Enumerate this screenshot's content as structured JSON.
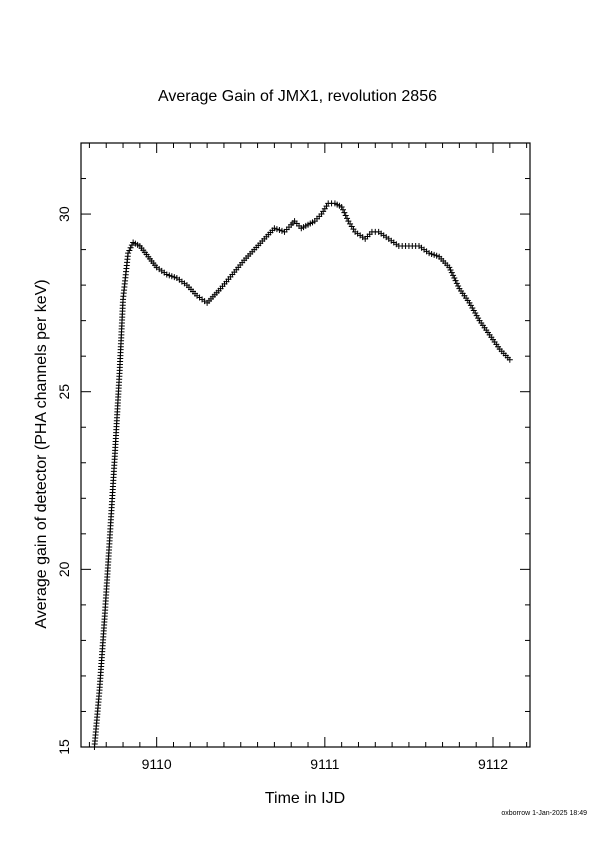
{
  "chart_data": {
    "type": "scatter",
    "title": "Average Gain of JMX1, revolution 2856",
    "xlabel": "Time in IJD",
    "ylabel": "Average gain of detector (PHA channels per keV)",
    "xlim": [
      9109.55,
      9112.22
    ],
    "ylim": [
      15,
      32
    ],
    "xticks": [
      9110,
      9111,
      9112
    ],
    "xtick_labels": [
      "9110",
      "9111",
      "9112"
    ],
    "yticks": [
      15,
      20,
      25,
      30
    ],
    "ytick_labels": [
      "15",
      "20",
      "25",
      "30"
    ],
    "marker": "+",
    "color": "#000000",
    "grid": false,
    "x": [
      9109.63,
      9109.66,
      9109.69,
      9109.72,
      9109.75,
      9109.78,
      9109.8,
      9109.83,
      9109.86,
      9109.9,
      9109.95,
      9110.0,
      9110.06,
      9110.12,
      9110.18,
      9110.24,
      9110.3,
      9110.38,
      9110.45,
      9110.52,
      9110.58,
      9110.64,
      9110.7,
      9110.76,
      9110.8,
      9110.82,
      9110.86,
      9110.9,
      9110.94,
      9110.98,
      9111.02,
      9111.06,
      9111.1,
      9111.14,
      9111.18,
      9111.24,
      9111.28,
      9111.32,
      9111.38,
      9111.44,
      9111.5,
      9111.56,
      9111.62,
      9111.68,
      9111.74,
      9111.8,
      9111.86,
      9111.92,
      9111.98,
      9112.04,
      9112.1
    ],
    "y": [
      15.0,
      16.6,
      18.6,
      20.8,
      23.1,
      25.6,
      27.6,
      28.9,
      29.2,
      29.1,
      28.8,
      28.5,
      28.3,
      28.2,
      28.0,
      27.7,
      27.5,
      27.9,
      28.3,
      28.7,
      29.0,
      29.3,
      29.6,
      29.5,
      29.7,
      29.8,
      29.6,
      29.7,
      29.8,
      30.0,
      30.3,
      30.3,
      30.2,
      29.8,
      29.5,
      29.3,
      29.5,
      29.5,
      29.3,
      29.1,
      29.1,
      29.1,
      28.9,
      28.8,
      28.5,
      27.9,
      27.5,
      27.0,
      26.6,
      26.2,
      25.9
    ]
  },
  "footer": {
    "stamp": "oxborrow 1-Jan-2025 18:49"
  }
}
